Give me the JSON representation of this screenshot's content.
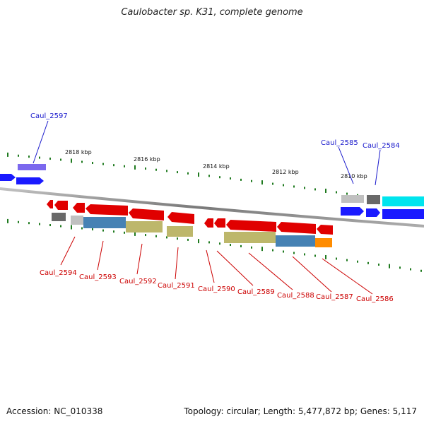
{
  "title": "Caulobacter sp. K31, complete genome",
  "footer": {
    "accession": "Accession: NC_010338",
    "summary": "Topology: circular; Length: 5,477,872 bp; Genes: 5,117"
  },
  "colors": {
    "forward": "#1a1aff",
    "reverse": "#e00000",
    "backbone": "#808080",
    "tick": "#1f7a1f",
    "label_forward": "#1a1acc",
    "label_reverse": "#cc0000",
    "steelblue": "#4682b4",
    "khaki": "#bdb76b",
    "orange": "#ff8c00",
    "cyan": "#00e5ee",
    "purple": "#7b68ee",
    "dimgray": "#696969",
    "lightgray": "#c0c0c0"
  },
  "scale": {
    "labels": [
      "2818 kbp",
      "2816 kbp",
      "2814 kbp",
      "2812 kbp",
      "2810 kbp"
    ]
  },
  "gene_labels": {
    "forward": [
      "Caul_2597",
      "Caul_2585",
      "Caul_2584"
    ],
    "reverse": [
      "Caul_2594",
      "Caul_2593",
      "Caul_2592",
      "Caul_2591",
      "Caul_2590",
      "Caul_2589",
      "Caul_2588",
      "Caul_2587",
      "Caul_2586"
    ]
  }
}
